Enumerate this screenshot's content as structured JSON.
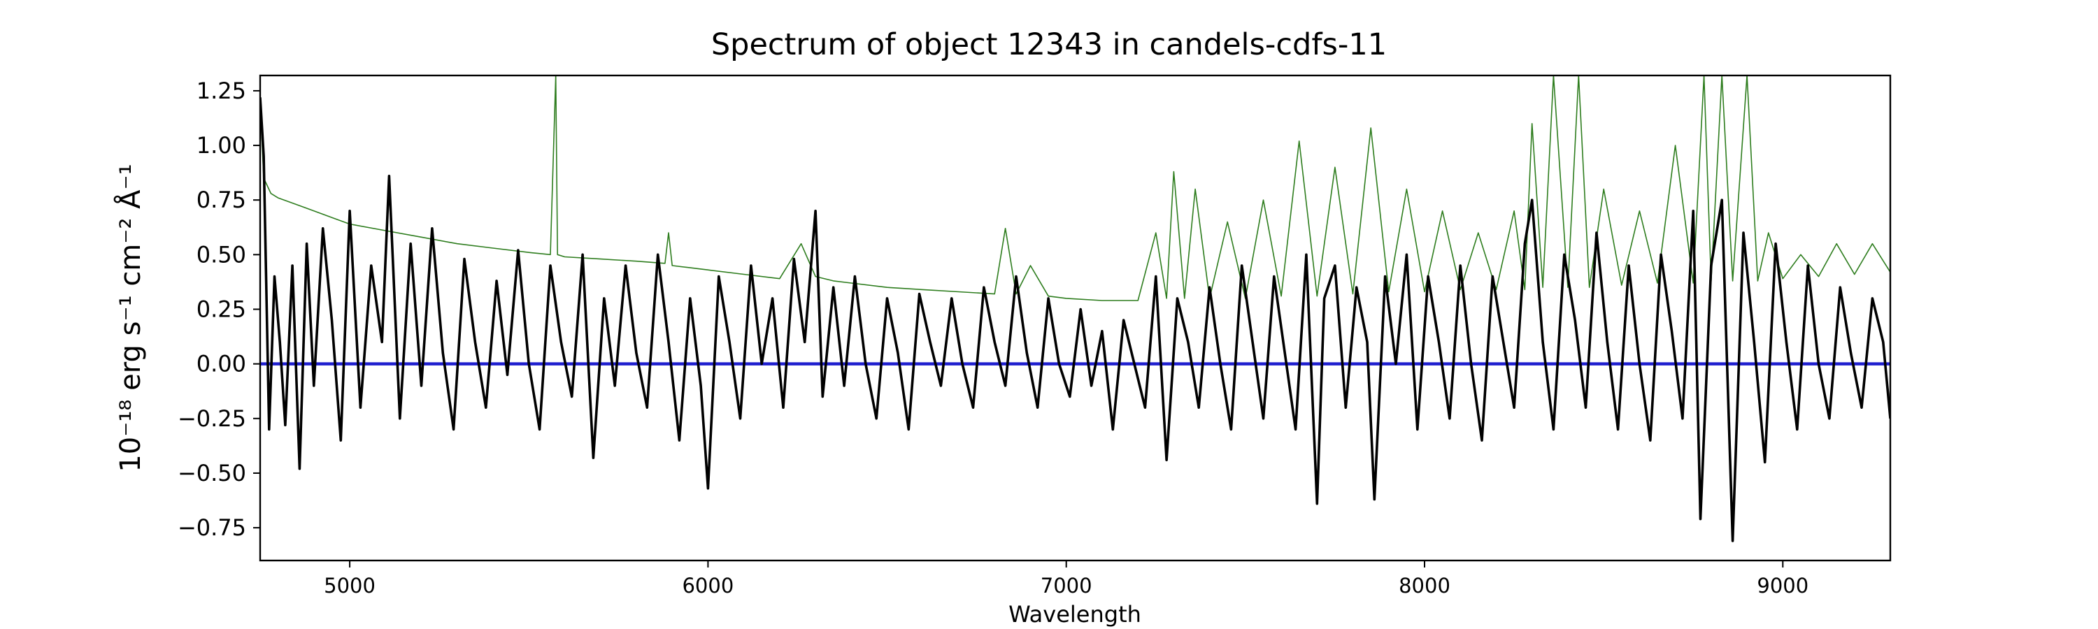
{
  "chart_data": {
    "type": "line",
    "title": "Spectrum of object 12343 in candels-cdfs-11",
    "xlabel": "Wavelength",
    "ylabel": "10⁻¹⁸ erg s⁻¹ cm⁻² Å⁻¹",
    "xlim": [
      4750,
      9300
    ],
    "ylim": [
      -0.9,
      1.32
    ],
    "xticks": [
      5000,
      6000,
      7000,
      8000,
      9000
    ],
    "xtick_labels": [
      "5000",
      "6000",
      "7000",
      "8000",
      "9000"
    ],
    "yticks": [
      -0.75,
      -0.5,
      -0.25,
      0.0,
      0.25,
      0.5,
      0.75,
      1.0,
      1.25
    ],
    "ytick_labels": [
      "−0.75",
      "−0.50",
      "−0.25",
      "0.00",
      "0.25",
      "0.50",
      "0.75",
      "1.00",
      "1.25"
    ],
    "grid": false,
    "series": [
      {
        "role": "flux",
        "color": "#000000",
        "x": [
          4750,
          4760,
          4775,
          4790,
          4805,
          4820,
          4840,
          4860,
          4880,
          4900,
          4925,
          4950,
          4975,
          5000,
          5030,
          5060,
          5090,
          5110,
          5140,
          5170,
          5200,
          5230,
          5260,
          5290,
          5320,
          5350,
          5380,
          5410,
          5440,
          5470,
          5500,
          5530,
          5560,
          5590,
          5620,
          5650,
          5680,
          5710,
          5740,
          5770,
          5800,
          5830,
          5860,
          5890,
          5920,
          5950,
          5980,
          6000,
          6030,
          6060,
          6090,
          6120,
          6150,
          6180,
          6210,
          6240,
          6270,
          6300,
          6320,
          6350,
          6380,
          6410,
          6440,
          6470,
          6500,
          6530,
          6560,
          6590,
          6620,
          6650,
          6680,
          6710,
          6740,
          6770,
          6800,
          6830,
          6860,
          6890,
          6920,
          6950,
          6980,
          7010,
          7040,
          7070,
          7100,
          7130,
          7160,
          7190,
          7220,
          7250,
          7280,
          7310,
          7340,
          7370,
          7400,
          7430,
          7460,
          7490,
          7520,
          7550,
          7580,
          7610,
          7640,
          7670,
          7700,
          7720,
          7750,
          7780,
          7810,
          7840,
          7860,
          7890,
          7920,
          7950,
          7980,
          8010,
          8040,
          8070,
          8100,
          8130,
          8160,
          8190,
          8220,
          8250,
          8280,
          8300,
          8330,
          8360,
          8390,
          8420,
          8450,
          8480,
          8510,
          8540,
          8570,
          8600,
          8630,
          8660,
          8690,
          8720,
          8750,
          8770,
          8800,
          8830,
          8860,
          8890,
          8920,
          8950,
          8980,
          9010,
          9040,
          9070,
          9100,
          9130,
          9160,
          9190,
          9220,
          9250,
          9280,
          9300
        ],
        "y": [
          1.22,
          0.95,
          -0.3,
          0.4,
          0.1,
          -0.28,
          0.45,
          -0.48,
          0.55,
          -0.1,
          0.62,
          0.2,
          -0.35,
          0.7,
          -0.2,
          0.45,
          0.1,
          0.86,
          -0.25,
          0.55,
          -0.1,
          0.62,
          0.05,
          -0.3,
          0.48,
          0.1,
          -0.2,
          0.38,
          -0.05,
          0.52,
          0.0,
          -0.3,
          0.45,
          0.1,
          -0.15,
          0.5,
          -0.43,
          0.3,
          -0.1,
          0.45,
          0.05,
          -0.2,
          0.5,
          0.1,
          -0.35,
          0.3,
          -0.1,
          -0.57,
          0.4,
          0.1,
          -0.25,
          0.45,
          0.0,
          0.3,
          -0.2,
          0.48,
          0.1,
          0.7,
          -0.15,
          0.35,
          -0.1,
          0.4,
          0.0,
          -0.25,
          0.3,
          0.05,
          -0.3,
          0.32,
          0.1,
          -0.1,
          0.3,
          0.0,
          -0.2,
          0.35,
          0.1,
          -0.1,
          0.4,
          0.05,
          -0.2,
          0.3,
          0.0,
          -0.15,
          0.25,
          -0.1,
          0.15,
          -0.3,
          0.2,
          0.0,
          -0.2,
          0.4,
          -0.44,
          0.3,
          0.1,
          -0.2,
          0.35,
          0.0,
          -0.3,
          0.45,
          0.1,
          -0.25,
          0.4,
          0.05,
          -0.3,
          0.5,
          -0.64,
          0.3,
          0.45,
          -0.2,
          0.35,
          0.1,
          -0.62,
          0.4,
          0.0,
          0.5,
          -0.3,
          0.4,
          0.1,
          -0.25,
          0.45,
          0.0,
          -0.35,
          0.4,
          0.1,
          -0.2,
          0.55,
          0.75,
          0.1,
          -0.3,
          0.5,
          0.2,
          -0.2,
          0.6,
          0.1,
          -0.3,
          0.45,
          0.0,
          -0.35,
          0.5,
          0.15,
          -0.25,
          0.7,
          -0.71,
          0.45,
          0.75,
          -0.81,
          0.6,
          0.1,
          -0.45,
          0.55,
          0.1,
          -0.3,
          0.45,
          0.0,
          -0.25,
          0.35,
          0.05,
          -0.2,
          0.3,
          0.1,
          -0.25
        ]
      },
      {
        "role": "error",
        "color": "#2e7d1e",
        "x": [
          4750,
          4760,
          4780,
          4800,
          4850,
          4900,
          4950,
          5000,
          5100,
          5200,
          5300,
          5400,
          5500,
          5560,
          5575,
          5580,
          5600,
          5700,
          5800,
          5880,
          5890,
          5900,
          5950,
          6000,
          6100,
          6200,
          6260,
          6300,
          6350,
          6400,
          6500,
          6600,
          6700,
          6800,
          6830,
          6860,
          6900,
          6950,
          7000,
          7100,
          7200,
          7250,
          7280,
          7300,
          7330,
          7360,
          7400,
          7450,
          7500,
          7550,
          7600,
          7650,
          7700,
          7750,
          7800,
          7850,
          7900,
          7950,
          8000,
          8050,
          8100,
          8150,
          8200,
          8250,
          8280,
          8300,
          8330,
          8360,
          8400,
          8430,
          8460,
          8500,
          8550,
          8600,
          8650,
          8700,
          8750,
          8780,
          8800,
          8830,
          8860,
          8900,
          8930,
          8960,
          9000,
          9050,
          9100,
          9150,
          9200,
          9250,
          9300
        ],
        "y": [
          1.2,
          0.85,
          0.78,
          0.76,
          0.73,
          0.7,
          0.67,
          0.64,
          0.61,
          0.58,
          0.55,
          0.53,
          0.51,
          0.5,
          1.32,
          0.5,
          0.49,
          0.48,
          0.47,
          0.46,
          0.6,
          0.45,
          0.44,
          0.43,
          0.41,
          0.39,
          0.55,
          0.4,
          0.38,
          0.37,
          0.35,
          0.34,
          0.33,
          0.32,
          0.62,
          0.32,
          0.45,
          0.31,
          0.3,
          0.29,
          0.29,
          0.6,
          0.3,
          0.88,
          0.3,
          0.8,
          0.3,
          0.65,
          0.3,
          0.75,
          0.31,
          1.02,
          0.31,
          0.9,
          0.32,
          1.08,
          0.33,
          0.8,
          0.33,
          0.7,
          0.34,
          0.6,
          0.34,
          0.7,
          0.34,
          1.1,
          0.35,
          1.32,
          0.35,
          1.32,
          0.35,
          0.8,
          0.36,
          0.7,
          0.37,
          1.0,
          0.37,
          1.32,
          0.38,
          1.32,
          0.38,
          1.32,
          0.38,
          0.6,
          0.39,
          0.5,
          0.4,
          0.55,
          0.41,
          0.55,
          0.42
        ]
      },
      {
        "role": "zero-level",
        "color": "#1f1fcf",
        "x": [
          4750,
          9300
        ],
        "y": [
          0.0,
          0.0
        ]
      }
    ]
  }
}
